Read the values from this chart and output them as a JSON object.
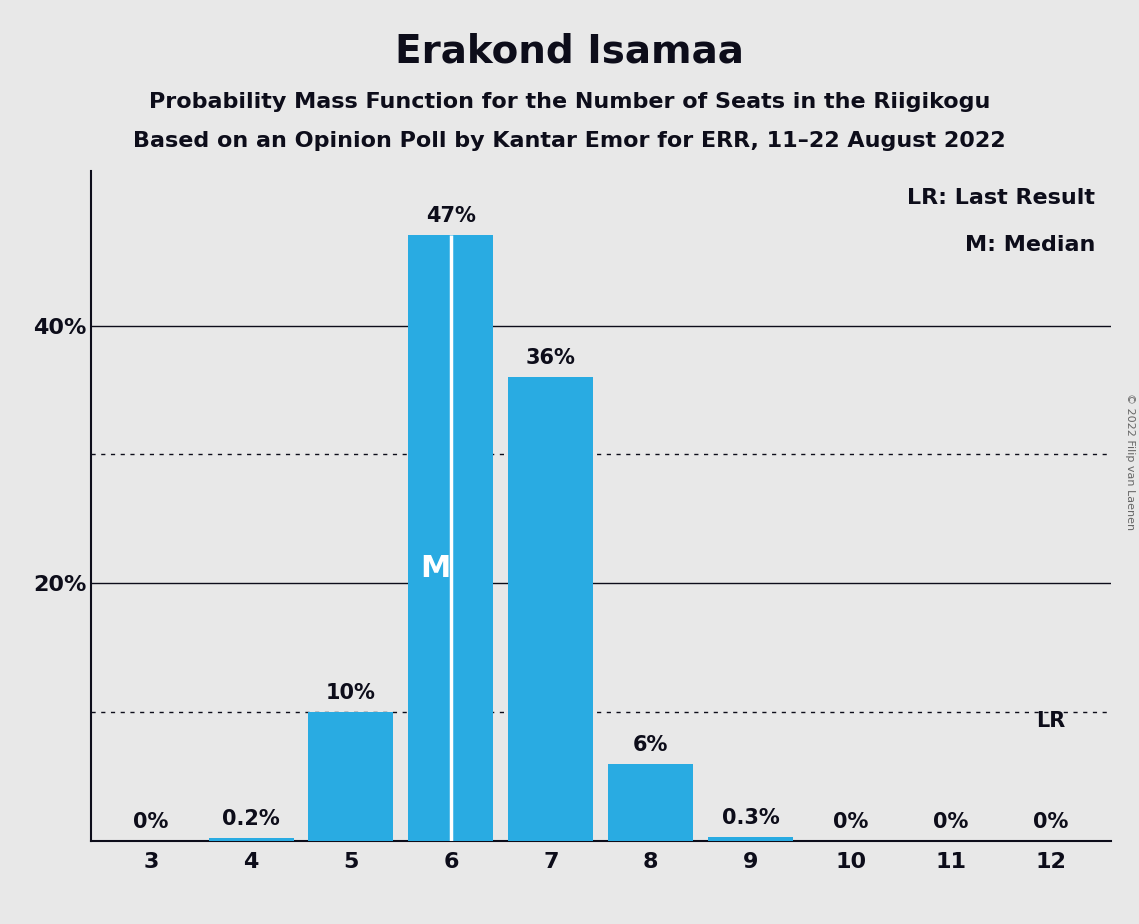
{
  "title": "Erakond Isamaa",
  "subtitle1": "Probability Mass Function for the Number of Seats in the Riigikogu",
  "subtitle2": "Based on an Opinion Poll by Kantar Emor for ERR, 11–22 August 2022",
  "copyright": "© 2022 Filip van Laenen",
  "categories": [
    3,
    4,
    5,
    6,
    7,
    8,
    9,
    10,
    11,
    12
  ],
  "values": [
    0.0,
    0.2,
    10.0,
    47.0,
    36.0,
    6.0,
    0.3,
    0.0,
    0.0,
    0.0
  ],
  "labels": [
    "0%",
    "0.2%",
    "10%",
    "47%",
    "36%",
    "6%",
    "0.3%",
    "0%",
    "0%",
    "0%"
  ],
  "bar_color": "#29ABE2",
  "median_bar": 6,
  "last_result_bar": 12,
  "last_result_label": "LR",
  "median_label": "M",
  "legend_lr": "LR: Last Result",
  "legend_m": "M: Median",
  "background_color": "#E8E8E8",
  "solid_gridlines": [
    20,
    40
  ],
  "dotted_gridlines": [
    10,
    30
  ],
  "ylim": [
    0,
    52
  ],
  "title_fontsize": 28,
  "subtitle_fontsize": 16,
  "label_fontsize": 15,
  "tick_fontsize": 16,
  "legend_fontsize": 16,
  "median_label_fontsize": 22,
  "text_color": "#0d0d1a"
}
